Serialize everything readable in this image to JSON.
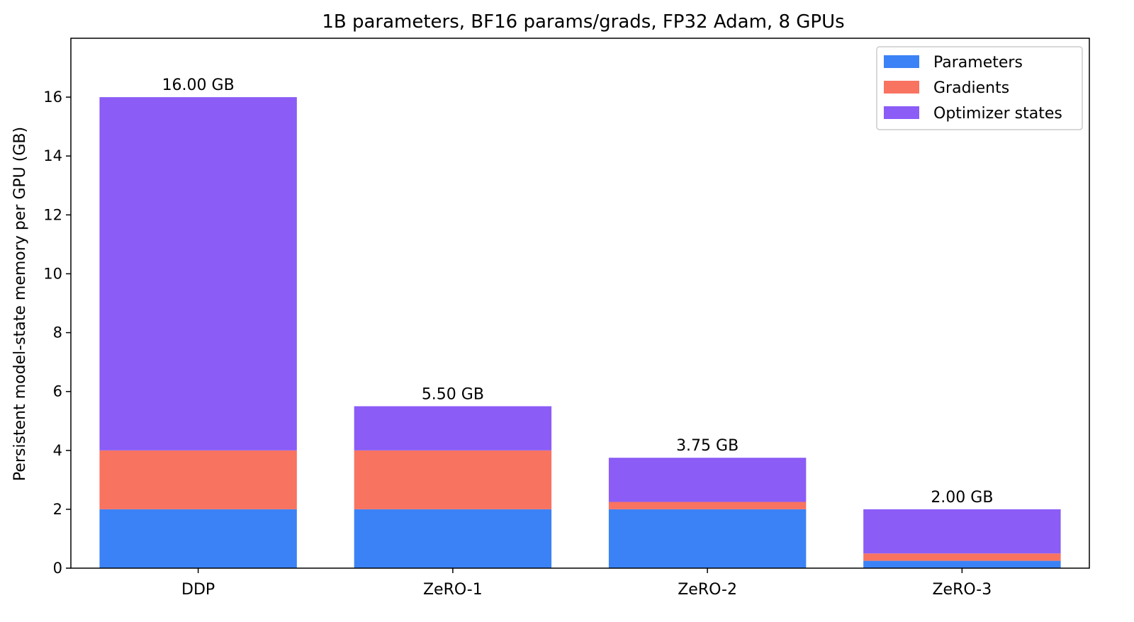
{
  "chart_data": {
    "type": "bar",
    "stacked": true,
    "title": "1B parameters, BF16 params/grads, FP32 Adam, 8 GPUs",
    "xlabel": "",
    "ylabel": "Persistent model-state memory per GPU (GB)",
    "ylim": [
      0,
      18
    ],
    "yticks": [
      "0",
      "2",
      "4",
      "6",
      "8",
      "10",
      "12",
      "14",
      "16"
    ],
    "categories": [
      "DDP",
      "ZeRO-1",
      "ZeRO-2",
      "ZeRO-3"
    ],
    "series": [
      {
        "name": "Parameters",
        "color": "#3b82f6",
        "values": [
          2.0,
          2.0,
          2.0,
          0.25
        ]
      },
      {
        "name": "Gradients",
        "color": "#f87360",
        "values": [
          2.0,
          2.0,
          0.25,
          0.25
        ]
      },
      {
        "name": "Optimizer states",
        "color": "#8b5cf6",
        "values": [
          12.0,
          1.5,
          1.5,
          1.5
        ]
      }
    ],
    "total_labels": [
      "16.00 GB",
      "5.50 GB",
      "3.75 GB",
      "2.00 GB"
    ],
    "legend_position": "top-right",
    "grid": false
  }
}
